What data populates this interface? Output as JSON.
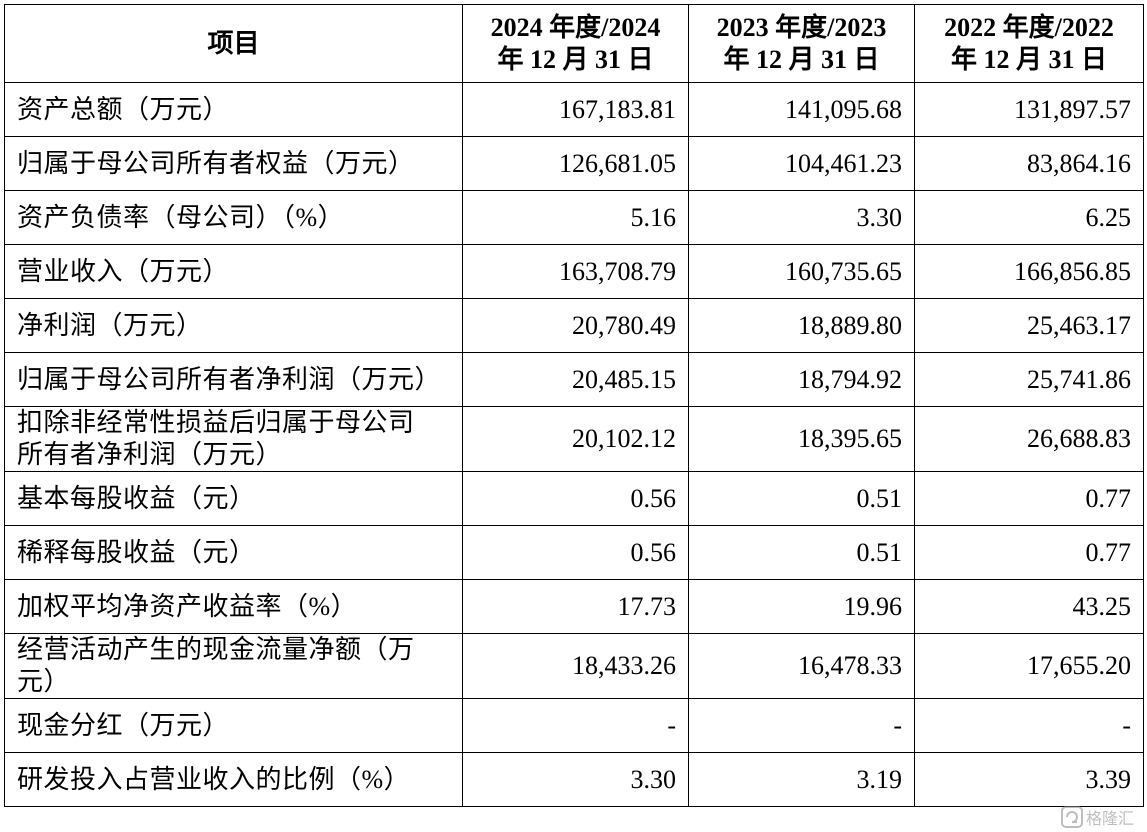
{
  "table": {
    "headers": [
      "项目",
      "2024 年度/2024 年 12 月 31 日",
      "2023 年度/2023 年 12 月 31 日",
      "2022 年度/2022 年 12 月 31 日"
    ],
    "header_lines": [
      [
        "项目"
      ],
      [
        "2024 年度/2024",
        "年 12 月 31 日"
      ],
      [
        "2023 年度/2023",
        "年 12 月 31 日"
      ],
      [
        "2022 年度/2022",
        "年 12 月 31 日"
      ]
    ],
    "rows": [
      {
        "label": [
          "资产总额（万元）"
        ],
        "values": [
          "167,183.81",
          "141,095.68",
          "131,897.57"
        ]
      },
      {
        "label": [
          "归属于母公司所有者权益（万元）"
        ],
        "values": [
          "126,681.05",
          "104,461.23",
          "83,864.16"
        ]
      },
      {
        "label": [
          "资产负债率（母公司）（%）"
        ],
        "values": [
          "5.16",
          "3.30",
          "6.25"
        ]
      },
      {
        "label": [
          "营业收入（万元）"
        ],
        "values": [
          "163,708.79",
          "160,735.65",
          "166,856.85"
        ]
      },
      {
        "label": [
          "净利润（万元）"
        ],
        "values": [
          "20,780.49",
          "18,889.80",
          "25,463.17"
        ]
      },
      {
        "label": [
          "归属于母公司所有者净利润（万元）"
        ],
        "values": [
          "20,485.15",
          "18,794.92",
          "25,741.86"
        ]
      },
      {
        "label": [
          "扣除非经常性损益后归属于母公司",
          "所有者净利润（万元）"
        ],
        "values": [
          "20,102.12",
          "18,395.65",
          "26,688.83"
        ]
      },
      {
        "label": [
          "基本每股收益（元）"
        ],
        "values": [
          "0.56",
          "0.51",
          "0.77"
        ]
      },
      {
        "label": [
          "稀释每股收益（元）"
        ],
        "values": [
          "0.56",
          "0.51",
          "0.77"
        ]
      },
      {
        "label": [
          "加权平均净资产收益率（%）"
        ],
        "values": [
          "17.73",
          "19.96",
          "43.25"
        ]
      },
      {
        "label": [
          "经营活动产生的现金流量净额（万",
          "元）"
        ],
        "values": [
          "18,433.26",
          "16,478.33",
          "17,655.20"
        ]
      },
      {
        "label": [
          "现金分红（万元）"
        ],
        "values": [
          "-",
          "-",
          "-"
        ]
      },
      {
        "label": [
          "研发投入占营业收入的比例（%）"
        ],
        "values": [
          "3.30",
          "3.19",
          "3.39"
        ]
      }
    ]
  },
  "watermark": {
    "text": "格隆汇",
    "color": "#8a8a8a"
  }
}
